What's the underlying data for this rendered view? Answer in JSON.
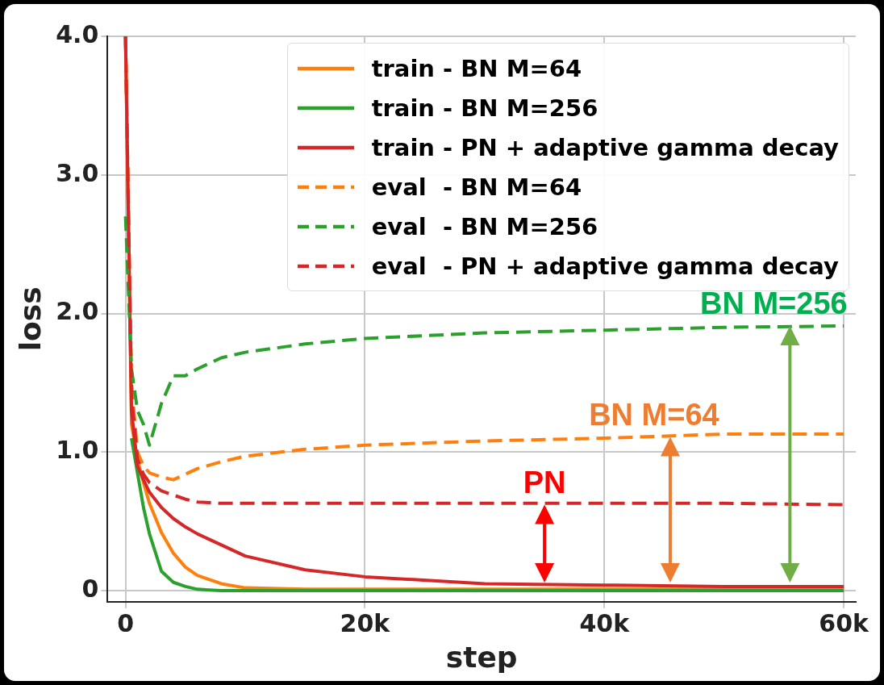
{
  "chart_data": {
    "type": "line",
    "xlabel": "step",
    "ylabel": "loss",
    "x": [
      0,
      500,
      1000,
      1500,
      2000,
      3000,
      4000,
      5000,
      6000,
      8000,
      10000,
      15000,
      20000,
      30000,
      40000,
      50000,
      60000
    ],
    "xlim": [
      -1500,
      61000
    ],
    "ylim": [
      -0.08,
      4.0
    ],
    "xticks": [
      0,
      {
        "value": 20000,
        "label": "20k"
      },
      {
        "value": 40000,
        "label": "40k"
      },
      {
        "value": 60000,
        "label": "60k"
      }
    ],
    "yticks": [
      0,
      {
        "value": 1,
        "label": "1.0"
      },
      {
        "value": 2,
        "label": "2.0"
      },
      {
        "value": 3,
        "label": "3.0"
      },
      {
        "value": 4,
        "label": "4.0"
      }
    ],
    "grid": true,
    "legend": "top right",
    "marker": "none",
    "series": [
      {
        "name": "train - BN M=64",
        "color": "#ff7f0e",
        "line_style": "solid",
        "values": [
          4.0,
          1.2,
          0.95,
          0.78,
          0.63,
          0.42,
          0.27,
          0.17,
          0.11,
          0.05,
          0.02,
          0.01,
          0.01,
          0.01,
          0.01,
          0.01,
          0.01
        ]
      },
      {
        "name": "train - BN M=256",
        "color": "#2ca02c",
        "line_style": "solid",
        "values": [
          null,
          1.1,
          0.85,
          0.6,
          0.41,
          0.14,
          0.06,
          0.03,
          0.01,
          0,
          0,
          0,
          0,
          0,
          0,
          0,
          0
        ]
      },
      {
        "name": "train - PN + adaptive gamma decay",
        "color": "#d62728",
        "line_style": "solid",
        "values": [
          4.0,
          1.3,
          0.9,
          0.8,
          0.71,
          0.6,
          0.52,
          0.46,
          0.41,
          0.33,
          0.25,
          0.15,
          0.1,
          0.05,
          0.04,
          0.03,
          0.03
        ]
      },
      {
        "name": "eval  - BN M=64",
        "color": "#ff7f0e",
        "line_style": "dashed",
        "values": [
          4.0,
          1.5,
          1.0,
          0.9,
          0.85,
          0.82,
          0.8,
          0.84,
          0.88,
          0.93,
          0.97,
          1.02,
          1.05,
          1.08,
          1.1,
          1.13,
          1.13
        ]
      },
      {
        "name": "eval  - BN M=256",
        "color": "#2ca02c",
        "line_style": "dashed",
        "values": [
          2.7,
          1.6,
          1.3,
          1.2,
          1.05,
          1.35,
          1.55,
          1.55,
          1.6,
          1.68,
          1.72,
          1.78,
          1.82,
          1.86,
          1.88,
          1.9,
          1.91
        ]
      },
      {
        "name": "eval  - PN + adaptive gamma decay",
        "color": "#d62728",
        "line_style": "dashed",
        "values": [
          4.0,
          1.4,
          0.95,
          0.84,
          0.78,
          0.72,
          0.69,
          0.66,
          0.64,
          0.63,
          0.63,
          0.63,
          0.63,
          0.63,
          0.63,
          0.63,
          0.62
        ]
      }
    ],
    "annotations": [
      {
        "text": "PN",
        "x": 35000,
        "y": 0.62
      },
      {
        "text": "BN M=64",
        "x": 45500,
        "y": 1.11
      },
      {
        "text": "BN M=256",
        "x": 55500,
        "y": 1.91
      }
    ]
  }
}
